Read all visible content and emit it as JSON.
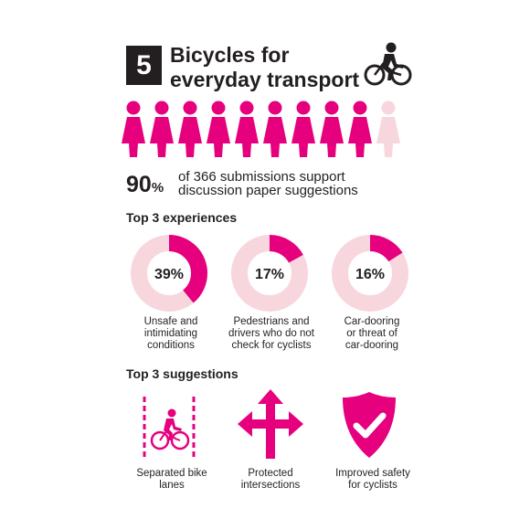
{
  "header": {
    "number": "5",
    "title_line1": "Bicycles for",
    "title_line2": "everyday transport"
  },
  "colors": {
    "accent": "#e6007e",
    "accent_light": "#f7d7dd",
    "text": "#231f20"
  },
  "icons": {
    "header_icon": "cyclist-icon",
    "person_icon": "person-icon"
  },
  "stat": {
    "value": "90",
    "unit": "%",
    "line1": "of 366 submissions support",
    "line2": "discussion paper suggestions"
  },
  "experiences": {
    "heading": "Top 3 experiences",
    "items": [
      {
        "percent": 39,
        "label": "39%",
        "caption_lines": [
          "Unsafe and",
          "intimidating",
          "conditions"
        ]
      },
      {
        "percent": 17,
        "label": "17%",
        "caption_lines": [
          "Pedestrians and",
          "drivers who do not",
          "check for cyclists"
        ]
      },
      {
        "percent": 16,
        "label": "16%",
        "caption_lines": [
          "Car-dooring",
          "or threat of",
          "car-dooring"
        ]
      }
    ]
  },
  "suggestions": {
    "heading": "Top 3 suggestions",
    "items": [
      {
        "icon": "bike-lane-icon",
        "caption_lines": [
          "Separated bike",
          "lanes"
        ]
      },
      {
        "icon": "intersection-arrows-icon",
        "caption_lines": [
          "Protected",
          "intersections"
        ]
      },
      {
        "icon": "shield-check-icon",
        "caption_lines": [
          "Improved safety",
          "for cyclists"
        ]
      }
    ]
  },
  "chart_data": [
    {
      "type": "pictogram",
      "total": 10,
      "filled": 9,
      "value_percent": 90
    },
    {
      "type": "pie",
      "categories": [
        "Unsafe and intimidating conditions",
        "Remainder"
      ],
      "values": [
        39,
        61
      ],
      "style": "donut"
    },
    {
      "type": "pie",
      "categories": [
        "Pedestrians and drivers who do not check for cyclists",
        "Remainder"
      ],
      "values": [
        17,
        83
      ],
      "style": "donut"
    },
    {
      "type": "pie",
      "categories": [
        "Car-dooring or threat of car-dooring",
        "Remainder"
      ],
      "values": [
        16,
        84
      ],
      "style": "donut"
    }
  ]
}
